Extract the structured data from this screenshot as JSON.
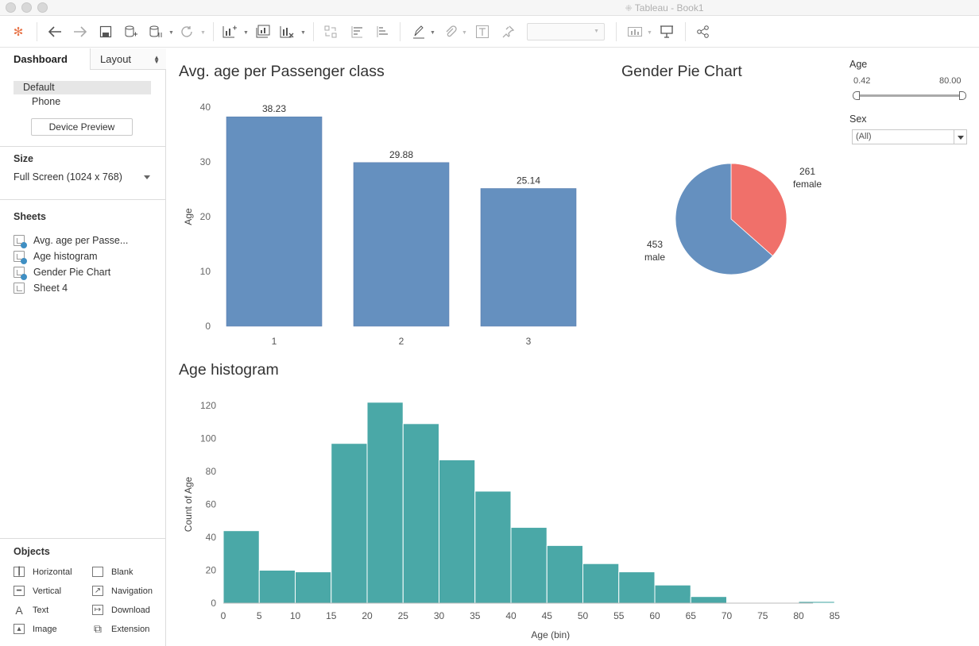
{
  "window": {
    "title": "Tableau - Book1"
  },
  "sidebar": {
    "tabs": [
      {
        "label": "Dashboard"
      },
      {
        "label": "Layout"
      }
    ],
    "devices": [
      {
        "label": "Default"
      },
      {
        "label": "Phone"
      }
    ],
    "device_preview_label": "Device Preview",
    "size_heading": "Size",
    "size_value": "Full Screen (1024 x 768)",
    "sheets_heading": "Sheets",
    "sheets": [
      {
        "label": "Avg. age per Passe..."
      },
      {
        "label": "Age histogram"
      },
      {
        "label": "Gender Pie Chart"
      },
      {
        "label": "Sheet 4"
      }
    ],
    "objects_heading": "Objects",
    "objects": [
      {
        "label": "Horizontal",
        "icon": "horizontal-layout-icon"
      },
      {
        "label": "Blank",
        "icon": "blank-icon"
      },
      {
        "label": "Vertical",
        "icon": "vertical-layout-icon"
      },
      {
        "label": "Navigation",
        "icon": "navigation-icon"
      },
      {
        "label": "Text",
        "icon": "text-icon"
      },
      {
        "label": "Download",
        "icon": "download-icon"
      },
      {
        "label": "Image",
        "icon": "image-icon"
      },
      {
        "label": "Extension",
        "icon": "extension-icon"
      }
    ]
  },
  "filters": {
    "age": {
      "heading": "Age",
      "min": "0.42",
      "max": "80.00"
    },
    "sex": {
      "heading": "Sex",
      "value": "(All)"
    }
  },
  "colors": {
    "bar_blue": "#6590bf",
    "teal": "#4aa8a7",
    "female_red": "#f0706a"
  },
  "chart_data": [
    {
      "type": "bar",
      "title": "Avg. age per Passenger class",
      "ylabel": "Age",
      "xlabel": "",
      "categories": [
        "1",
        "2",
        "3"
      ],
      "values": [
        38.23,
        29.88,
        25.14
      ],
      "data_labels": [
        "38.23",
        "29.88",
        "25.14"
      ],
      "ylim": [
        0,
        40
      ],
      "yticks": [
        0,
        10,
        20,
        30,
        40
      ]
    },
    {
      "type": "pie",
      "title": "Gender Pie Chart",
      "slices": [
        {
          "label": "female",
          "value": 261,
          "value_label": "261"
        },
        {
          "label": "male",
          "value": 453,
          "value_label": "453"
        }
      ]
    },
    {
      "type": "bar",
      "title": "Age histogram",
      "xlabel": "Age (bin)",
      "ylabel": "Count of Age",
      "bins": [
        0,
        5,
        10,
        15,
        20,
        25,
        30,
        35,
        40,
        45,
        50,
        55,
        60,
        65,
        70,
        75,
        80
      ],
      "bin_width": 5,
      "values": [
        44,
        20,
        19,
        97,
        122,
        109,
        87,
        68,
        46,
        35,
        24,
        19,
        11,
        4,
        0,
        0,
        1
      ],
      "ylim": [
        0,
        120
      ],
      "yticks": [
        0,
        20,
        40,
        60,
        80,
        100,
        120
      ],
      "xticks": [
        0,
        5,
        10,
        15,
        20,
        25,
        30,
        35,
        40,
        45,
        50,
        55,
        60,
        65,
        70,
        75,
        80,
        85
      ]
    }
  ]
}
